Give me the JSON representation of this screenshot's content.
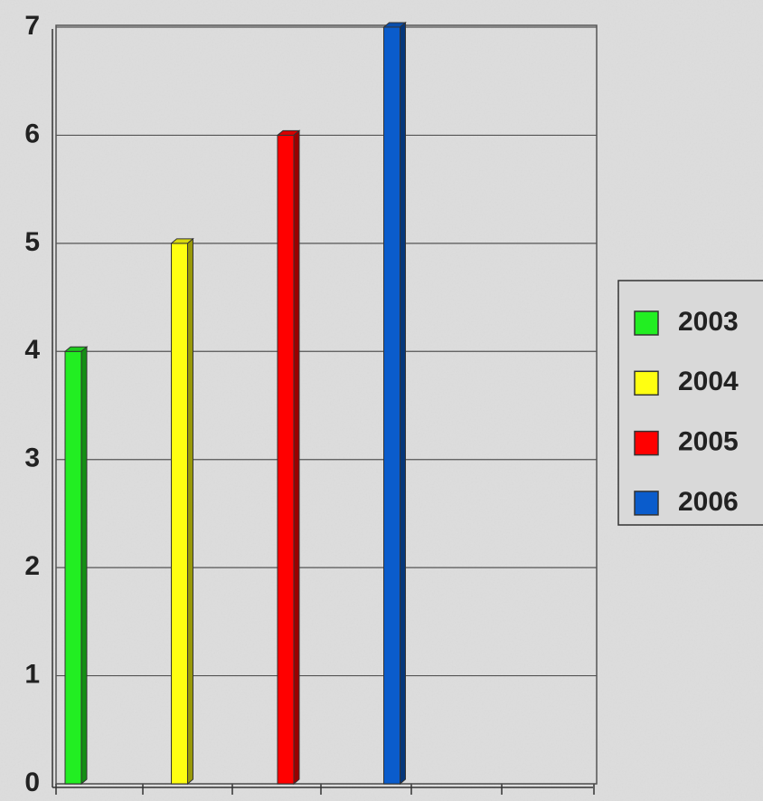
{
  "chart_data": {
    "type": "bar",
    "categories": [
      null
    ],
    "series": [
      {
        "name": "2003",
        "color": "#22ee22",
        "values": [
          4
        ]
      },
      {
        "name": "2004",
        "color": "#ffff11",
        "values": [
          5
        ]
      },
      {
        "name": "2005",
        "color": "#ff0000",
        "values": [
          6
        ]
      },
      {
        "name": "2006",
        "color": "#0a5ccc",
        "values": [
          7
        ]
      }
    ],
    "ylim": [
      0,
      7
    ],
    "yticks": [
      0,
      1,
      2,
      3,
      4,
      5,
      6,
      7
    ],
    "grid": true,
    "legend": "right"
  }
}
